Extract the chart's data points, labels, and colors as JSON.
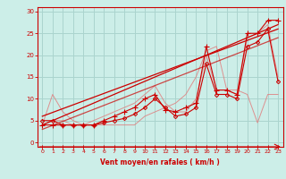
{
  "bg_color": "#cceee8",
  "grid_color": "#aad4ce",
  "xlabel": "Vent moyen/en rafales ( km/h )",
  "xlabel_color": "#cc0000",
  "tick_color": "#cc0000",
  "xlim": [
    -0.5,
    23.5
  ],
  "ylim": [
    -1,
    31
  ],
  "xticks": [
    0,
    1,
    2,
    3,
    4,
    5,
    6,
    7,
    8,
    9,
    10,
    11,
    12,
    13,
    14,
    15,
    16,
    17,
    18,
    19,
    20,
    21,
    22,
    23
  ],
  "yticks": [
    0,
    5,
    10,
    15,
    20,
    25,
    30
  ],
  "line1_x": [
    0,
    1,
    2,
    3,
    4,
    5,
    6,
    7,
    8,
    9,
    10,
    11,
    12,
    13,
    14,
    15,
    16,
    17,
    18,
    19,
    20,
    21,
    22,
    23
  ],
  "line1_y": [
    4,
    4,
    4,
    4,
    4,
    4,
    5,
    6,
    7,
    8,
    10,
    11,
    7.5,
    7,
    8,
    9,
    22,
    12,
    12,
    11,
    25,
    25,
    28,
    28
  ],
  "line1_color": "#cc0000",
  "line2_x": [
    0,
    1,
    2,
    3,
    4,
    5,
    6,
    7,
    8,
    9,
    10,
    11,
    12,
    13,
    14,
    15,
    16,
    17,
    18,
    19,
    20,
    21,
    22,
    23
  ],
  "line2_y": [
    5,
    5,
    4,
    4,
    4,
    4,
    4.5,
    5,
    5.5,
    6.5,
    8,
    10,
    8,
    6,
    6.5,
    8,
    18,
    11,
    11,
    10,
    22,
    23,
    26,
    14
  ],
  "line2_color": "#cc0000",
  "line3_x": [
    0,
    1,
    2,
    3,
    4,
    5,
    6,
    7,
    8,
    9,
    10,
    11,
    12,
    13,
    14,
    15,
    16,
    17,
    18,
    19,
    20,
    21,
    22,
    23
  ],
  "line3_y": [
    4,
    11,
    7,
    5,
    4,
    4,
    4,
    4,
    4,
    4,
    6,
    7,
    8,
    9,
    11,
    15,
    21,
    22,
    12,
    12,
    11,
    4.5,
    11,
    11
  ],
  "line3_color": "#e08080",
  "line4_x": [
    0,
    1,
    2,
    3,
    4,
    5,
    6,
    7,
    8,
    9,
    10,
    11,
    12,
    13,
    14,
    15,
    16,
    17,
    18,
    19,
    20,
    21,
    22,
    23
  ],
  "line4_y": [
    4,
    5,
    5,
    4,
    4,
    5,
    6,
    7,
    8,
    9,
    11,
    13,
    9,
    7,
    7,
    10,
    20,
    12,
    12,
    11,
    24,
    25,
    27,
    15
  ],
  "line4_color": "#e08080",
  "trend1_x": [
    0,
    23
  ],
  "trend1_y": [
    4,
    27
  ],
  "trend1_color": "#cc0000",
  "trend2_x": [
    0,
    23
  ],
  "trend2_y": [
    6,
    26
  ],
  "trend2_color": "#cc0000",
  "trend3_x": [
    0,
    23
  ],
  "trend3_y": [
    3,
    24
  ],
  "trend3_color": "#cc0000",
  "bottom_line_color": "#cc0000"
}
